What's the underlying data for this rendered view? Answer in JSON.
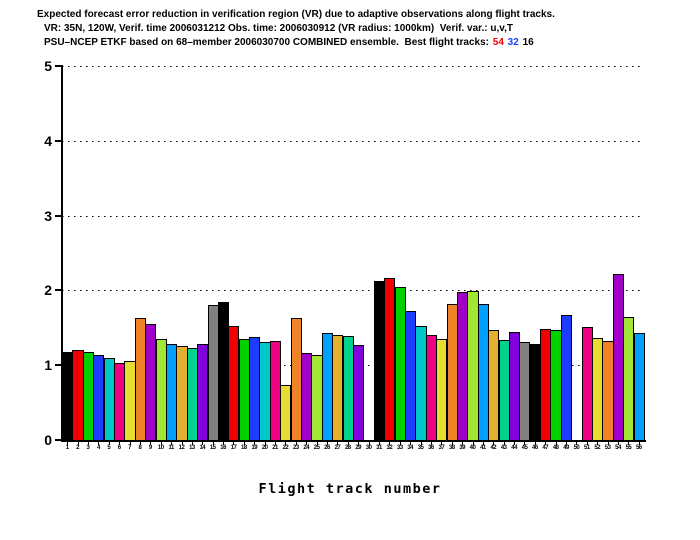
{
  "header": {
    "line1": "Expected forecast error reduction in verification region (VR) due to adaptive observations along flight tracks.",
    "line2": "VR: 35N, 120W, Verif. time 2006031212 Obs. time: 2006030912 (VR radius: 1000km)  Verif. var.: u,v,T",
    "line3_prefix": "PSU–NCEP ETKF based on 68–member 2006030700 COMBINED ensemble.  Best flight tracks:",
    "best_tracks": [
      "54",
      "32",
      "16"
    ],
    "best_track_colors": [
      "#f00000",
      "#1e3cff",
      "#000000"
    ]
  },
  "chart_data": {
    "type": "bar",
    "title": "Expected forecast error reduction in verification region (VR) due to adaptive observations along flight tracks.",
    "subtitle1": "VR: 35N, 120W, Verif. time 2006031212 Obs. time: 2006030912 (VR radius: 1000km)  Verif. var.: u,v,T",
    "subtitle2": "PSU-NCEP ETKF based on 68-member 2006030700 COMBINED ensemble.  Best flight tracks: 54 32 16",
    "xlabel": "Flight track number",
    "ylabel": "",
    "ylim": [
      0,
      5
    ],
    "yticks": [
      "0",
      "1",
      "2",
      "3",
      "4",
      "5"
    ],
    "grid": "horizontal dotted at 1,2,3,4,5",
    "legend": "none",
    "x": [
      1,
      2,
      3,
      4,
      5,
      6,
      7,
      8,
      9,
      10,
      11,
      12,
      13,
      14,
      15,
      16,
      17,
      18,
      19,
      20,
      21,
      22,
      23,
      24,
      25,
      26,
      27,
      28,
      29,
      30,
      31,
      32,
      33,
      34,
      35,
      36,
      37,
      38,
      39,
      40,
      41,
      42,
      43,
      44,
      45,
      46,
      47,
      48,
      49,
      50,
      51,
      52,
      53,
      54,
      55,
      56
    ],
    "values": [
      1.18,
      1.2,
      1.18,
      1.14,
      1.1,
      1.03,
      1.06,
      1.63,
      1.55,
      1.35,
      1.28,
      1.26,
      1.23,
      1.28,
      1.8,
      1.85,
      1.52,
      1.35,
      1.38,
      1.31,
      1.33,
      0.74,
      1.63,
      1.16,
      1.14,
      1.43,
      1.41,
      1.39,
      1.27,
      0,
      2.13,
      2.16,
      2.05,
      1.72,
      1.53,
      1.4,
      1.35,
      1.82,
      1.98,
      1.99,
      1.82,
      1.47,
      1.34,
      1.45,
      1.31,
      1.29,
      1.49,
      1.47,
      1.67,
      0,
      1.51,
      1.36,
      1.33,
      2.22,
      1.64,
      1.43
    ],
    "missing_tracks": [
      30,
      50
    ],
    "palette_cycle": [
      "#000000",
      "#f00000",
      "#00d200",
      "#1e3cff",
      "#00c8c8",
      "#f00082",
      "#e6dc32",
      "#f08228",
      "#a000c8",
      "#a0e632",
      "#00a0ff",
      "#e6af2d",
      "#00d28c",
      "#8200dc",
      "#808080"
    ]
  }
}
